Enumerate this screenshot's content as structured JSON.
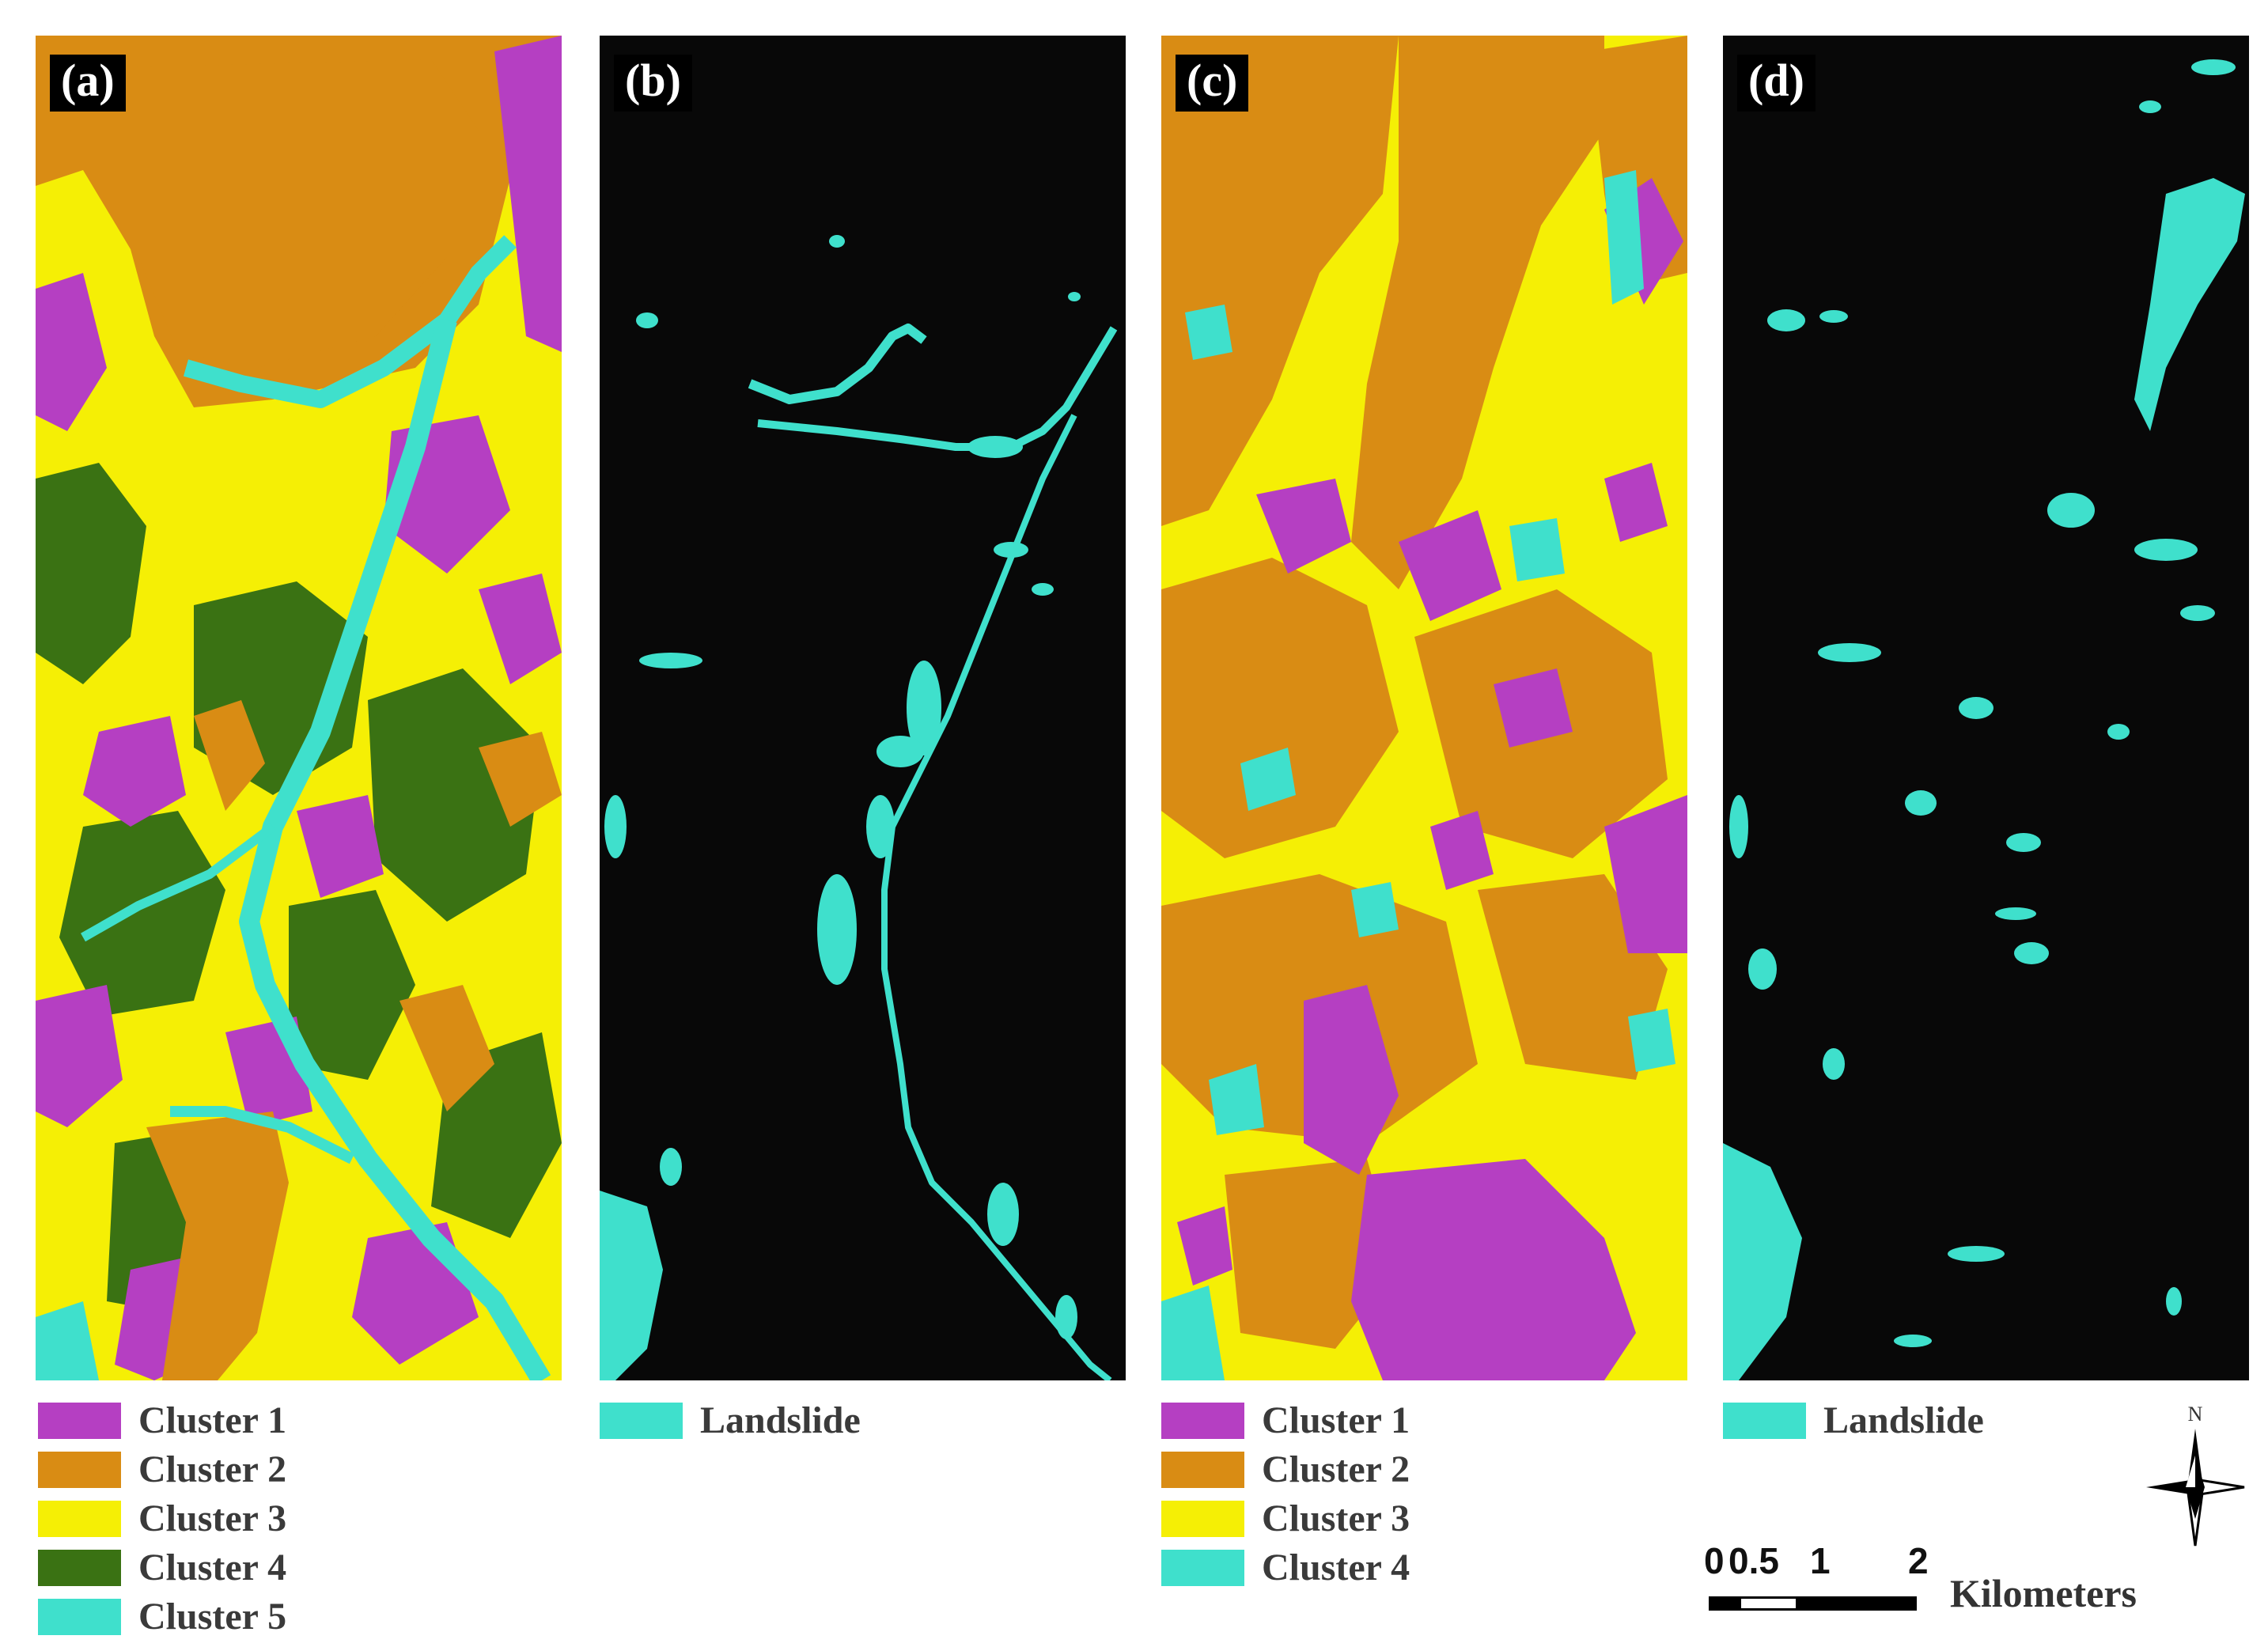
{
  "panels": [
    {
      "label": "(a)",
      "kind": "cluster-map-5"
    },
    {
      "label": "(b)",
      "kind": "landslide-map"
    },
    {
      "label": "(c)",
      "kind": "cluster-map-4"
    },
    {
      "label": "(d)",
      "kind": "landslide-map"
    }
  ],
  "colors": {
    "cluster_1": "#b53fc2",
    "cluster_2": "#d98c14",
    "cluster_3": "#f5ef05",
    "cluster_4": "#3a7213",
    "cluster_5": "#3fe0cc",
    "landslide": "#3fe0cc",
    "background": "#080808"
  },
  "legends": {
    "a": [
      "Cluster 1",
      "Cluster 2",
      "Cluster 3",
      "Cluster 4",
      "Cluster 5"
    ],
    "b": [
      "Landslide"
    ],
    "c": [
      "Cluster 1",
      "Cluster 2",
      "Cluster 3",
      "Cluster 4"
    ],
    "d": [
      "Landslide"
    ]
  },
  "scale_bar": {
    "ticks": [
      "0",
      "0.5",
      "1",
      "2"
    ],
    "unit": "Kilometers"
  },
  "north_arrow": {
    "label": "N"
  }
}
